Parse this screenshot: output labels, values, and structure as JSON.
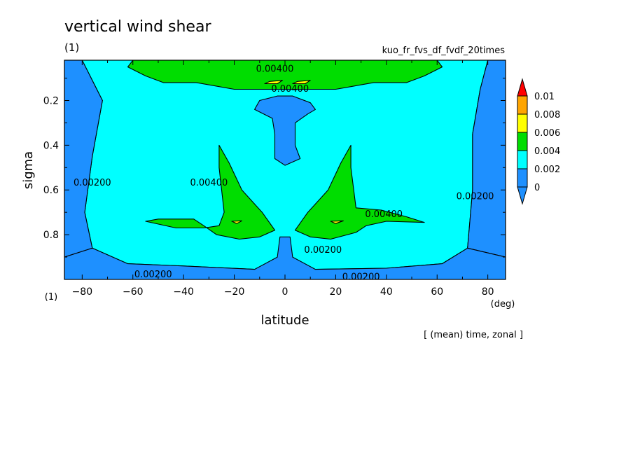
{
  "chart_data": {
    "type": "heatmap",
    "title": "vertical wind shear",
    "subtitle_left": "(1)",
    "subtitle_right": "kuo_fr_fvs_df_fvdf_20times",
    "footer_note": "[ (mean) time, zonal ]",
    "xlabel": "latitude",
    "xunit": "(deg)",
    "ylabel": "sigma",
    "yunit": "(1)",
    "xlim": [
      -87,
      87
    ],
    "ylim": [
      1.0,
      0.02
    ],
    "x_ticks": [
      -80,
      -60,
      -40,
      -20,
      0,
      20,
      40,
      60,
      80
    ],
    "y_ticks": [
      0.2,
      0.4,
      0.6,
      0.8
    ],
    "grid": false,
    "legend_placement": "right",
    "colorbar": {
      "levels": [
        "0",
        "0.002",
        "0.004",
        "0.006",
        "0.008",
        "0.01"
      ],
      "colors": [
        "#1e90ff",
        "#00ffff",
        "#00dd00",
        "#ffff00",
        "#ffa500",
        "#ff0000"
      ]
    },
    "contour_labels": [
      {
        "text": "0.00400",
        "lat": -4,
        "sigma": 0.06
      },
      {
        "text": "0.00400",
        "lat": 2,
        "sigma": 0.15
      },
      {
        "text": "0.00400",
        "lat": -30,
        "sigma": 0.57
      },
      {
        "text": "0.00400",
        "lat": 39,
        "sigma": 0.71
      },
      {
        "text": "0.00200",
        "lat": -76,
        "sigma": 0.57
      },
      {
        "text": "0.00200",
        "lat": 75,
        "sigma": 0.63
      },
      {
        "text": "0.00200",
        "lat": 15,
        "sigma": 0.87
      },
      {
        "text": "0.00200",
        "lat": -52,
        "sigma": 0.98
      },
      {
        "text": "0.00200",
        "lat": 30,
        "sigma": 0.99
      }
    ],
    "regions": [
      {
        "level": 0.002,
        "points": [
          [
            -80,
            0.02
          ],
          [
            -72,
            0.2
          ],
          [
            -76,
            0.45
          ],
          [
            -79,
            0.7
          ],
          [
            -76,
            0.86
          ],
          [
            -62,
            0.93
          ],
          [
            -40,
            0.94
          ],
          [
            -12,
            0.955
          ],
          [
            0,
            0.955
          ],
          [
            12,
            0.955
          ],
          [
            40,
            0.95
          ],
          [
            62,
            0.93
          ],
          [
            72,
            0.86
          ],
          [
            74,
            0.6
          ],
          [
            74,
            0.35
          ],
          [
            77,
            0.15
          ],
          [
            80,
            0.02
          ]
        ]
      },
      {
        "level": 0.004,
        "points": [
          [
            -62,
            0.05
          ],
          [
            -55,
            0.09
          ],
          [
            -48,
            0.12
          ],
          [
            -35,
            0.12
          ],
          [
            -20,
            0.15
          ],
          [
            0,
            0.15
          ],
          [
            20,
            0.15
          ],
          [
            35,
            0.12
          ],
          [
            48,
            0.12
          ],
          [
            55,
            0.09
          ],
          [
            62,
            0.05
          ],
          [
            60,
            0.02
          ],
          [
            -60,
            0.02
          ]
        ]
      },
      {
        "level": 0.006,
        "points": [
          [
            -6,
            0.115
          ],
          [
            -1,
            0.11
          ],
          [
            -3,
            0.125
          ],
          [
            -8,
            0.125
          ]
        ]
      },
      {
        "level": 0.006,
        "points": [
          [
            5,
            0.115
          ],
          [
            10,
            0.11
          ],
          [
            8,
            0.125
          ],
          [
            3,
            0.125
          ]
        ]
      },
      {
        "level": 0.004,
        "points": [
          [
            -26,
            0.4
          ],
          [
            -22,
            0.48
          ],
          [
            -17,
            0.6
          ],
          [
            -9,
            0.7
          ],
          [
            -4,
            0.78
          ],
          [
            -10,
            0.81
          ],
          [
            -18,
            0.82
          ],
          [
            -27,
            0.8
          ],
          [
            -32,
            0.76
          ],
          [
            -36,
            0.73
          ],
          [
            -50,
            0.73
          ],
          [
            -55,
            0.74
          ],
          [
            -43,
            0.77
          ],
          [
            -32,
            0.77
          ],
          [
            -26,
            0.76
          ],
          [
            -24,
            0.7
          ],
          [
            -26,
            0.5
          ]
        ]
      },
      {
        "level": 0.004,
        "points": [
          [
            26,
            0.4
          ],
          [
            22,
            0.48
          ],
          [
            17,
            0.6
          ],
          [
            9,
            0.7
          ],
          [
            4,
            0.78
          ],
          [
            10,
            0.81
          ],
          [
            18,
            0.82
          ],
          [
            28,
            0.79
          ],
          [
            32,
            0.76
          ],
          [
            40,
            0.74
          ],
          [
            55,
            0.745
          ],
          [
            48,
            0.72
          ],
          [
            38,
            0.69
          ],
          [
            28,
            0.68
          ],
          [
            26,
            0.5
          ]
        ]
      },
      {
        "level": 0.006,
        "points": [
          [
            -21,
            0.74
          ],
          [
            -17,
            0.738
          ],
          [
            -19,
            0.75
          ]
        ]
      },
      {
        "level": 0.006,
        "points": [
          [
            18,
            0.74
          ],
          [
            23,
            0.738
          ],
          [
            20,
            0.75
          ]
        ]
      },
      {
        "level": 0.0,
        "points": [
          [
            -3,
            0.18
          ],
          [
            3,
            0.18
          ],
          [
            10,
            0.21
          ],
          [
            12,
            0.24
          ],
          [
            9,
            0.26
          ],
          [
            4,
            0.3
          ],
          [
            4,
            0.4
          ],
          [
            6,
            0.46
          ],
          [
            0,
            0.49
          ],
          [
            -4,
            0.46
          ],
          [
            -4,
            0.35
          ],
          [
            -5,
            0.28
          ],
          [
            -12,
            0.24
          ],
          [
            -10,
            0.2
          ]
        ]
      },
      {
        "level": 0.0,
        "points": [
          [
            -87,
            0.02
          ],
          [
            -80,
            0.02
          ],
          [
            -72,
            0.2
          ],
          [
            -76,
            0.45
          ],
          [
            -79,
            0.7
          ],
          [
            -76,
            0.86
          ],
          [
            -87,
            0.9
          ]
        ]
      },
      {
        "level": 0.0,
        "points": [
          [
            87,
            0.02
          ],
          [
            80,
            0.02
          ],
          [
            77,
            0.15
          ],
          [
            74,
            0.35
          ],
          [
            74,
            0.6
          ],
          [
            72,
            0.86
          ],
          [
            87,
            0.9
          ]
        ]
      },
      {
        "level": 0.0,
        "points": [
          [
            -87,
            0.9
          ],
          [
            -76,
            0.86
          ],
          [
            -62,
            0.93
          ],
          [
            -40,
            0.94
          ],
          [
            -12,
            0.955
          ],
          [
            -3,
            0.9
          ],
          [
            -2,
            0.81
          ],
          [
            2,
            0.81
          ],
          [
            3,
            0.9
          ],
          [
            12,
            0.955
          ],
          [
            40,
            0.95
          ],
          [
            62,
            0.93
          ],
          [
            72,
            0.86
          ],
          [
            87,
            0.9
          ],
          [
            87,
            1.0
          ],
          [
            -87,
            1.0
          ]
        ]
      }
    ]
  }
}
